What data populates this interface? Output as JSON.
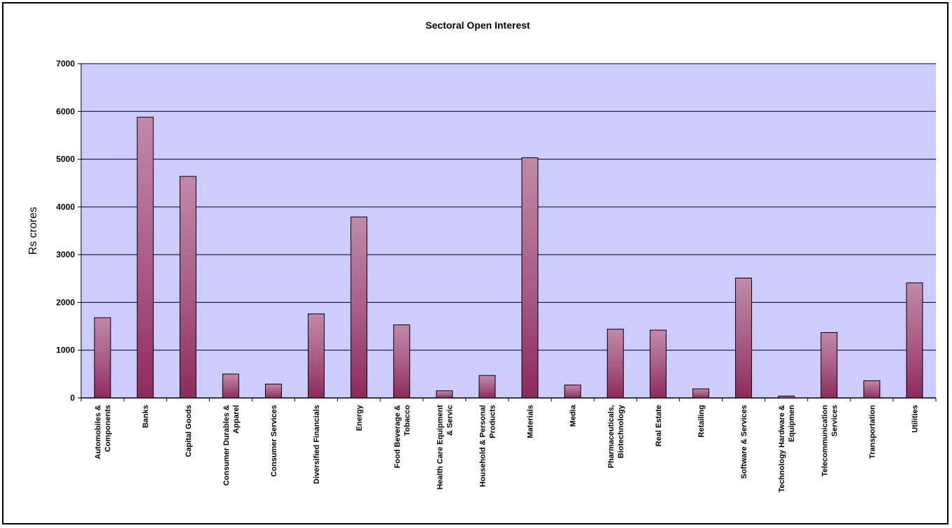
{
  "chart_data": {
    "type": "bar",
    "title": "Sectoral Open Interest",
    "xlabel": "",
    "ylabel": "Rs crores",
    "ylim": [
      0,
      7000
    ],
    "yticks": [
      0,
      1000,
      2000,
      3000,
      4000,
      5000,
      6000,
      7000
    ],
    "grid": true,
    "legend": "none",
    "categories": [
      [
        "Automobiles &",
        "Components"
      ],
      [
        "Banks"
      ],
      [
        "Capital Goods"
      ],
      [
        "Consumer Durables &",
        "Apparel"
      ],
      [
        "Consumer Services"
      ],
      [
        "Diversified Financials"
      ],
      [
        "Energy"
      ],
      [
        "Food Beverage &",
        "Tobacco"
      ],
      [
        "Health Care Equipment",
        "& Servic"
      ],
      [
        "Household & Personal",
        "Products"
      ],
      [
        "Materials"
      ],
      [
        "Media"
      ],
      [
        "Pharmaceuticals,",
        "Biotechnology"
      ],
      [
        "Real Estate"
      ],
      [
        "Retailing"
      ],
      [
        "Software & Services"
      ],
      [
        "Technology Hardware &",
        "Equipmen"
      ],
      [
        "Telecommunication",
        "Services"
      ],
      [
        "Transportation"
      ],
      [
        "Utilities"
      ]
    ],
    "values": [
      1680,
      5880,
      4640,
      500,
      290,
      1760,
      3790,
      1530,
      150,
      470,
      5030,
      270,
      1440,
      1420,
      190,
      2510,
      40,
      1370,
      360,
      2410
    ],
    "colors": {
      "plot_background": "#ccccff",
      "bar_top": "#c08aa8",
      "bar_bottom": "#8e2a5c",
      "gridline": "#000000"
    }
  }
}
